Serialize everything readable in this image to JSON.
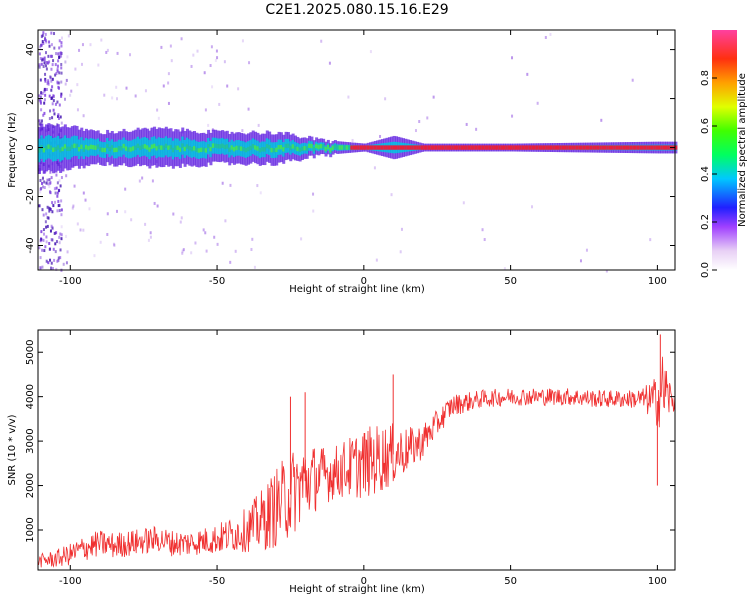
{
  "title": "C2E1.2025.080.15.16.E29",
  "colors": {
    "snr_line": "#f03030",
    "band_core": "#e8203c",
    "axis": "#000000"
  },
  "chart_data": [
    {
      "type": "heatmap",
      "title": "C2E1.2025.080.15.16.E29",
      "xlabel": "Height of straight line (km)",
      "ylabel": "Frequency (Hz)",
      "xlim": [
        -111,
        106
      ],
      "ylim": [
        -50,
        48
      ],
      "x_ticks": [
        -100,
        -50,
        0,
        50,
        100
      ],
      "y_ticks": [
        -40,
        -20,
        0,
        20,
        40
      ],
      "grid": false,
      "description_points": {
        "band_center_hz": 0,
        "band_halfwidth_hz": [
          {
            "x": -105,
            "w": 6
          },
          {
            "x": -90,
            "w": 4
          },
          {
            "x": -70,
            "w": 5
          },
          {
            "x": -50,
            "w": 4
          },
          {
            "x": -30,
            "w": 4
          },
          {
            "x": -15,
            "w": 2
          },
          {
            "x": 0,
            "w": 1
          },
          {
            "x": 10,
            "w": 3
          },
          {
            "x": 20,
            "w": 1
          },
          {
            "x": 50,
            "w": 1
          },
          {
            "x": 100,
            "w": 1.5
          }
        ]
      },
      "colorbar": {
        "label": "Normalized spectral amplitude",
        "range": [
          0,
          1
        ],
        "ticks": [
          "0.0",
          "0.2",
          "0.4",
          "0.6",
          "0.8"
        ]
      }
    },
    {
      "type": "line",
      "xlabel": "Height of straight line (km)",
      "ylabel": "SNR (10 * v/v)",
      "xlim": [
        -111,
        106
      ],
      "ylim": [
        100,
        5500
      ],
      "x_ticks": [
        -100,
        -50,
        0,
        50,
        100
      ],
      "y_ticks": [
        1000,
        2000,
        3000,
        4000,
        5000
      ],
      "grid": false,
      "series": [
        {
          "color": "#f03030",
          "x": [
            -111,
            -105,
            -100,
            -95,
            -90,
            -85,
            -80,
            -75,
            -70,
            -65,
            -60,
            -55,
            -50,
            -45,
            -40,
            -35,
            -30,
            -25,
            -20,
            -15,
            -10,
            -5,
            0,
            5,
            10,
            15,
            20,
            25,
            30,
            40,
            50,
            60,
            70,
            80,
            90,
            95,
            100,
            102,
            105
          ],
          "y": [
            300,
            350,
            450,
            600,
            700,
            650,
            700,
            750,
            800,
            700,
            700,
            750,
            800,
            900,
            1000,
            1200,
            1500,
            1800,
            2100,
            2200,
            2300,
            2400,
            2500,
            2600,
            2700,
            2800,
            3000,
            3400,
            3800,
            3950,
            4000,
            4000,
            4000,
            3950,
            3950,
            3950,
            3900,
            4200,
            3900
          ],
          "spread": [
            150,
            200,
            250,
            300,
            300,
            300,
            300,
            300,
            300,
            300,
            300,
            300,
            350,
            400,
            500,
            700,
            900,
            1000,
            900,
            700,
            600,
            700,
            800,
            800,
            700,
            500,
            400,
            300,
            250,
            200,
            200,
            200,
            200,
            200,
            200,
            250,
            600,
            900,
            300
          ],
          "max_spikes": [
            {
              "x": -20,
              "y": 4100
            },
            {
              "x": -25,
              "y": 4000
            },
            {
              "x": 10,
              "y": 4500
            },
            {
              "x": 101,
              "y": 5400
            },
            {
              "x": 100,
              "y": 2000
            }
          ]
        }
      ]
    }
  ]
}
